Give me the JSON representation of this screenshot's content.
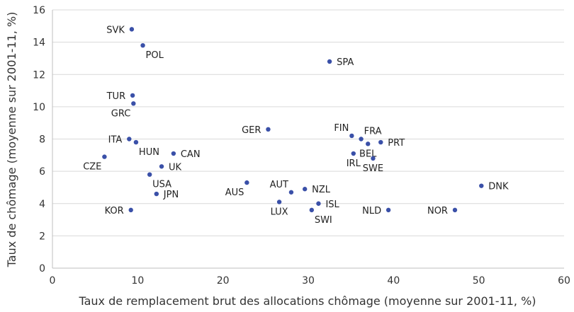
{
  "chart_data": {
    "type": "scatter",
    "xlabel": "Taux de remplacement brut des allocations chômage (moyenne sur 2001-11, %)",
    "ylabel": "Taux de chômage (moyenne sur 2001-11, %)",
    "xlim": [
      0,
      60
    ],
    "ylim": [
      0,
      16
    ],
    "x_ticks": [
      0,
      10,
      20,
      30,
      40,
      50,
      60
    ],
    "y_ticks": [
      0,
      2,
      4,
      6,
      8,
      10,
      12,
      14,
      16
    ],
    "grid": "horizontal",
    "point_color": "#3a50a8",
    "points": [
      {
        "label": "SVK",
        "x": 9.3,
        "y": 14.8,
        "pos": "left"
      },
      {
        "label": "POL",
        "x": 10.6,
        "y": 13.8,
        "pos": "below-right"
      },
      {
        "label": "SPA",
        "x": 32.5,
        "y": 12.8,
        "pos": "right"
      },
      {
        "label": "TUR",
        "x": 9.4,
        "y": 10.7,
        "pos": "left"
      },
      {
        "label": "GRC",
        "x": 9.5,
        "y": 10.2,
        "pos": "below-left"
      },
      {
        "label": "GER",
        "x": 25.3,
        "y": 8.6,
        "pos": "left"
      },
      {
        "label": "FIN",
        "x": 35.1,
        "y": 8.2,
        "pos": "above-left"
      },
      {
        "label": "FRA",
        "x": 36.2,
        "y": 8.0,
        "pos": "above-right"
      },
      {
        "label": "ITA",
        "x": 9.0,
        "y": 8.0,
        "pos": "left"
      },
      {
        "label": "HUN",
        "x": 9.8,
        "y": 7.8,
        "pos": "below-right"
      },
      {
        "label": "PRT",
        "x": 38.5,
        "y": 7.8,
        "pos": "right"
      },
      {
        "label": "BEL",
        "x": 37.0,
        "y": 7.7,
        "pos": "below"
      },
      {
        "label": "CAN",
        "x": 14.2,
        "y": 7.1,
        "pos": "right"
      },
      {
        "label": "IRL",
        "x": 35.3,
        "y": 7.1,
        "pos": "below"
      },
      {
        "label": "CZE",
        "x": 6.1,
        "y": 6.9,
        "pos": "below-left"
      },
      {
        "label": "SWE",
        "x": 37.6,
        "y": 6.8,
        "pos": "below"
      },
      {
        "label": "UK",
        "x": 12.8,
        "y": 6.3,
        "pos": "right"
      },
      {
        "label": "USA",
        "x": 11.4,
        "y": 5.8,
        "pos": "below-right"
      },
      {
        "label": "AUS",
        "x": 22.8,
        "y": 5.3,
        "pos": "below-left"
      },
      {
        "label": "DNK",
        "x": 50.3,
        "y": 5.1,
        "pos": "right"
      },
      {
        "label": "AUT",
        "x": 28.0,
        "y": 4.7,
        "pos": "above-left"
      },
      {
        "label": "NZL",
        "x": 29.6,
        "y": 4.9,
        "pos": "right"
      },
      {
        "label": "JPN",
        "x": 12.2,
        "y": 4.6,
        "pos": "right"
      },
      {
        "label": "LUX",
        "x": 26.6,
        "y": 4.1,
        "pos": "below"
      },
      {
        "label": "ISL",
        "x": 31.2,
        "y": 4.0,
        "pos": "right"
      },
      {
        "label": "SWI",
        "x": 30.4,
        "y": 3.6,
        "pos": "below-right"
      },
      {
        "label": "KOR",
        "x": 9.2,
        "y": 3.6,
        "pos": "left"
      },
      {
        "label": "NLD",
        "x": 39.4,
        "y": 3.6,
        "pos": "left"
      },
      {
        "label": "NOR",
        "x": 47.2,
        "y": 3.6,
        "pos": "left"
      }
    ]
  }
}
